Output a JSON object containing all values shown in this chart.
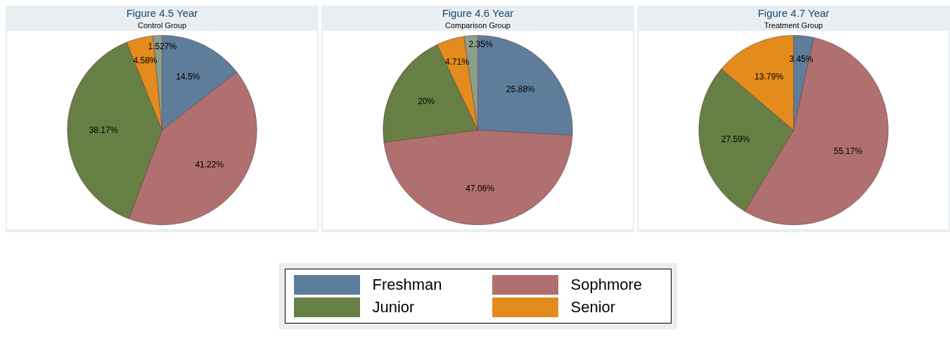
{
  "chart_data": [
    {
      "type": "pie",
      "title": "Figure 4.5 Year",
      "subtitle": "Control Group",
      "categories": [
        null,
        null,
        null,
        null,
        null
      ],
      "values": [
        14.5,
        41.22,
        38.17,
        4.58,
        1.527
      ],
      "colors": [
        "#5e7d9a",
        "#b07070",
        "#667f44",
        "#e38b1c",
        "#8a9f8a"
      ],
      "value_labels": [
        "14.5%",
        "41.22%",
        "38.17%",
        "4.58%",
        "1.527%"
      ]
    },
    {
      "type": "pie",
      "title": "Figure 4.6 Year",
      "subtitle": "Comparison Group",
      "categories": [
        "Freshman",
        "Sophmore",
        "Junior",
        "Senior",
        null
      ],
      "values": [
        25.88,
        47.06,
        20,
        4.71,
        2.35
      ],
      "colors": [
        "#5e7d9a",
        "#b07070",
        "#667f44",
        "#e38b1c",
        "#8a9f8a"
      ],
      "value_labels": [
        "25.88%",
        "47.06%",
        "20%",
        "4.71%",
        "2.35%"
      ],
      "legend": "bottom"
    },
    {
      "type": "pie",
      "title": "Figure 4.7 Year",
      "subtitle": "Treatment Group",
      "categories": [
        null,
        null,
        null,
        null
      ],
      "values": [
        3.45,
        55.17,
        27.59,
        13.79
      ],
      "colors": [
        "#5e7d9a",
        "#b07070",
        "#667f44",
        "#e38b1c"
      ],
      "value_labels": [
        "3.45%",
        "55.17%",
        "27.59%",
        "13.79%"
      ]
    }
  ]
}
